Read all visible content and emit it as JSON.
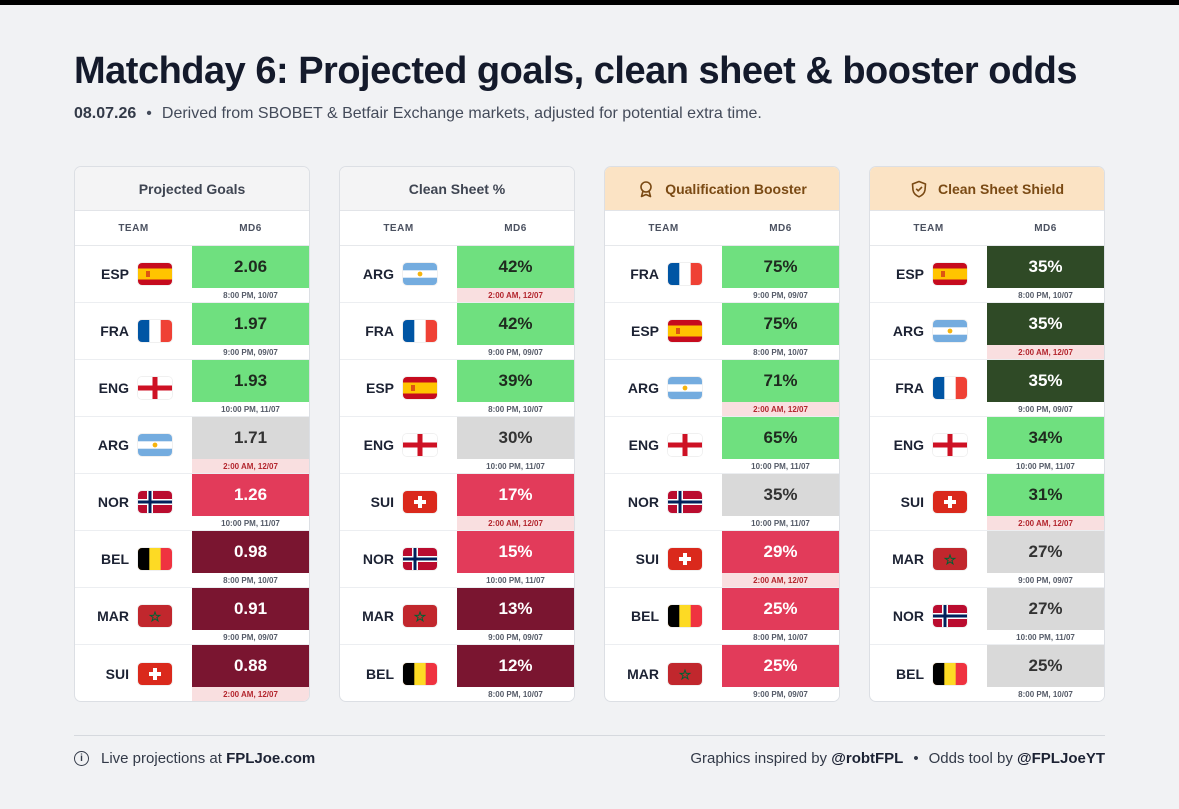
{
  "title": {
    "md": "Matchday 6:",
    "rest": "Projected goals, clean sheet & booster odds"
  },
  "subtitle": {
    "date": "08.07.26",
    "dot": "•",
    "text": "Derived from SBOBET & Betfair Exchange markets, adjusted for potential extra time."
  },
  "colhead": {
    "team": "TEAM",
    "md": "MD6"
  },
  "panels": [
    {
      "title": "Projected Goals",
      "rows": [
        {
          "team": "ESP",
          "flag": "ESP",
          "value": "2.06",
          "time": "8:00 PM, 10/07",
          "late": false,
          "bg": "#6fe07f",
          "fg": "#1f2a1f"
        },
        {
          "team": "FRA",
          "flag": "FRA",
          "value": "1.97",
          "time": "9:00 PM, 09/07",
          "late": false,
          "bg": "#6fe07f",
          "fg": "#1f2a1f"
        },
        {
          "team": "ENG",
          "flag": "ENG",
          "value": "1.93",
          "time": "10:00 PM, 11/07",
          "late": false,
          "bg": "#6fe07f",
          "fg": "#1f2a1f"
        },
        {
          "team": "ARG",
          "flag": "ARG",
          "value": "1.71",
          "time": "2:00 AM, 12/07",
          "late": true,
          "bg": "#d9d9d9",
          "fg": "#333333"
        },
        {
          "team": "NOR",
          "flag": "NOR",
          "value": "1.26",
          "time": "10:00 PM, 11/07",
          "late": false,
          "bg": "#e23b5a",
          "fg": "#ffffff"
        },
        {
          "team": "BEL",
          "flag": "BEL",
          "value": "0.98",
          "time": "8:00 PM, 10/07",
          "late": false,
          "bg": "#7a1530",
          "fg": "#ffffff"
        },
        {
          "team": "MAR",
          "flag": "MAR",
          "value": "0.91",
          "time": "9:00 PM, 09/07",
          "late": false,
          "bg": "#7a1530",
          "fg": "#ffffff"
        },
        {
          "team": "SUI",
          "flag": "SUI",
          "value": "0.88",
          "time": "2:00 AM, 12/07",
          "late": true,
          "bg": "#7a1530",
          "fg": "#ffffff"
        }
      ]
    },
    {
      "title": "Clean Sheet %",
      "rows": [
        {
          "team": "ARG",
          "flag": "ARG",
          "value": "42%",
          "time": "2:00 AM, 12/07",
          "late": true,
          "bg": "#6fe07f",
          "fg": "#1f2a1f"
        },
        {
          "team": "FRA",
          "flag": "FRA",
          "value": "42%",
          "time": "9:00 PM, 09/07",
          "late": false,
          "bg": "#6fe07f",
          "fg": "#1f2a1f"
        },
        {
          "team": "ESP",
          "flag": "ESP",
          "value": "39%",
          "time": "8:00 PM, 10/07",
          "late": false,
          "bg": "#6fe07f",
          "fg": "#1f2a1f"
        },
        {
          "team": "ENG",
          "flag": "ENG",
          "value": "30%",
          "time": "10:00 PM, 11/07",
          "late": false,
          "bg": "#d9d9d9",
          "fg": "#333333"
        },
        {
          "team": "SUI",
          "flag": "SUI",
          "value": "17%",
          "time": "2:00 AM, 12/07",
          "late": true,
          "bg": "#e23b5a",
          "fg": "#ffffff"
        },
        {
          "team": "NOR",
          "flag": "NOR",
          "value": "15%",
          "time": "10:00 PM, 11/07",
          "late": false,
          "bg": "#e23b5a",
          "fg": "#ffffff"
        },
        {
          "team": "MAR",
          "flag": "MAR",
          "value": "13%",
          "time": "9:00 PM, 09/07",
          "late": false,
          "bg": "#7a1530",
          "fg": "#ffffff"
        },
        {
          "team": "BEL",
          "flag": "BEL",
          "value": "12%",
          "time": "8:00 PM, 10/07",
          "late": false,
          "bg": "#7a1530",
          "fg": "#ffffff"
        }
      ]
    },
    {
      "title": "Qualification Booster",
      "icon": "medal-icon",
      "rows": [
        {
          "team": "FRA",
          "flag": "FRA",
          "value": "75%",
          "time": "9:00 PM, 09/07",
          "late": false,
          "bg": "#6fe07f",
          "fg": "#1f2a1f"
        },
        {
          "team": "ESP",
          "flag": "ESP",
          "value": "75%",
          "time": "8:00 PM, 10/07",
          "late": false,
          "bg": "#6fe07f",
          "fg": "#1f2a1f"
        },
        {
          "team": "ARG",
          "flag": "ARG",
          "value": "71%",
          "time": "2:00 AM, 12/07",
          "late": true,
          "bg": "#6fe07f",
          "fg": "#1f2a1f"
        },
        {
          "team": "ENG",
          "flag": "ENG",
          "value": "65%",
          "time": "10:00 PM, 11/07",
          "late": false,
          "bg": "#6fe07f",
          "fg": "#1f2a1f"
        },
        {
          "team": "NOR",
          "flag": "NOR",
          "value": "35%",
          "time": "10:00 PM, 11/07",
          "late": false,
          "bg": "#d9d9d9",
          "fg": "#333333"
        },
        {
          "team": "SUI",
          "flag": "SUI",
          "value": "29%",
          "time": "2:00 AM, 12/07",
          "late": true,
          "bg": "#e23b5a",
          "fg": "#ffffff"
        },
        {
          "team": "BEL",
          "flag": "BEL",
          "value": "25%",
          "time": "8:00 PM, 10/07",
          "late": false,
          "bg": "#e23b5a",
          "fg": "#ffffff"
        },
        {
          "team": "MAR",
          "flag": "MAR",
          "value": "25%",
          "time": "9:00 PM, 09/07",
          "late": false,
          "bg": "#e23b5a",
          "fg": "#ffffff"
        }
      ]
    },
    {
      "title": "Clean Sheet Shield",
      "icon": "shield-icon",
      "rows": [
        {
          "team": "ESP",
          "flag": "ESP",
          "value": "35%",
          "time": "8:00 PM, 10/07",
          "late": false,
          "bg": "#2f4a26",
          "fg": "#ffffff"
        },
        {
          "team": "ARG",
          "flag": "ARG",
          "value": "35%",
          "time": "2:00 AM, 12/07",
          "late": true,
          "bg": "#2f4a26",
          "fg": "#ffffff"
        },
        {
          "team": "FRA",
          "flag": "FRA",
          "value": "35%",
          "time": "9:00 PM, 09/07",
          "late": false,
          "bg": "#2f4a26",
          "fg": "#ffffff"
        },
        {
          "team": "ENG",
          "flag": "ENG",
          "value": "34%",
          "time": "10:00 PM, 11/07",
          "late": false,
          "bg": "#6fe07f",
          "fg": "#1f2a1f"
        },
        {
          "team": "SUI",
          "flag": "SUI",
          "value": "31%",
          "time": "2:00 AM, 12/07",
          "late": true,
          "bg": "#6fe07f",
          "fg": "#1f2a1f"
        },
        {
          "team": "MAR",
          "flag": "MAR",
          "value": "27%",
          "time": "9:00 PM, 09/07",
          "late": false,
          "bg": "#d9d9d9",
          "fg": "#333333"
        },
        {
          "team": "NOR",
          "flag": "NOR",
          "value": "27%",
          "time": "10:00 PM, 11/07",
          "late": false,
          "bg": "#d9d9d9",
          "fg": "#333333"
        },
        {
          "team": "BEL",
          "flag": "BEL",
          "value": "25%",
          "time": "8:00 PM, 10/07",
          "late": false,
          "bg": "#d9d9d9",
          "fg": "#333333"
        }
      ]
    }
  ],
  "footer": {
    "left_icon": "info-icon",
    "left_text": "Live projections at ",
    "left_link": "FPLJoe.com",
    "right_text1": "Graphics inspired by ",
    "right_link1": "@robtFPL",
    "right_dot": "•",
    "right_text2": "Odds tool by ",
    "right_link2": "@FPLJoeYT"
  }
}
